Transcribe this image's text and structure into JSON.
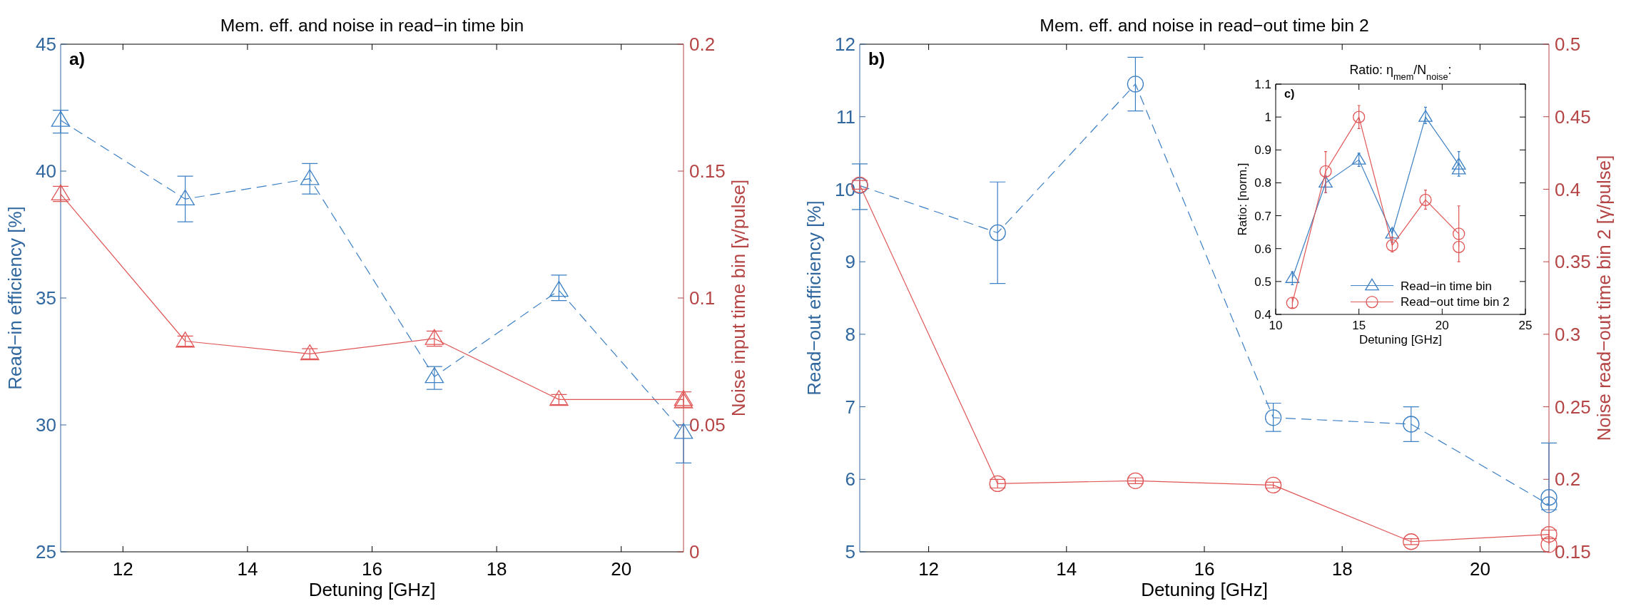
{
  "chart_data": [
    {
      "type": "line",
      "title": "Mem. eff. and noise in read−in time bin",
      "xlabel": "Detuning [GHz]",
      "ylabel": "Read−in efficiency [%]",
      "y2label": "Noise input time bin [γ/pulse]",
      "annotations": [
        "a)"
      ],
      "xlim": [
        11,
        21
      ],
      "xticks": [
        12,
        14,
        16,
        18,
        20
      ],
      "ylim": [
        25,
        45
      ],
      "yticks": [
        25,
        30,
        35,
        40,
        45
      ],
      "y2lim": [
        0,
        0.2
      ],
      "y2ticks": [
        0,
        0.05,
        0.1,
        0.15,
        0.2
      ],
      "grid": false,
      "legend": false,
      "marker": "triangle",
      "series": [
        {
          "color": "#3b7fc4",
          "line_style": "dashed",
          "x": [
            11,
            13,
            15,
            17,
            19,
            21
          ],
          "values": [
            42.0,
            38.9,
            39.7,
            31.9,
            35.3,
            29.7
          ],
          "errors": [
            [
              41.5,
              42.4
            ],
            [
              38.0,
              39.8
            ],
            [
              39.1,
              40.3
            ],
            [
              31.4,
              32.3
            ],
            [
              34.9,
              35.9
            ],
            [
              28.5,
              30.0
            ]
          ]
        },
        {
          "color": "#e05555",
          "line_style": "solid",
          "axis": "y2",
          "x": [
            11,
            13,
            15,
            17,
            19,
            21,
            21
          ],
          "values": [
            0.141,
            0.083,
            0.078,
            0.084,
            0.06,
            0.06,
            0.059
          ],
          "errors": [
            0.003,
            0.002,
            0.002,
            0.003,
            0.002,
            0.003,
            null
          ]
        }
      ]
    },
    {
      "type": "line",
      "title": "Mem. eff. and noise in read−out time bin 2",
      "xlabel": "Detuning [GHz]",
      "ylabel": "Read−out efficiency [%]",
      "y2label": "Noise read−out time bin 2 [γ/pulse]",
      "annotations": [
        "b)"
      ],
      "xlim": [
        11,
        21
      ],
      "xticks": [
        12,
        14,
        16,
        18,
        20
      ],
      "ylim": [
        5,
        12
      ],
      "yticks": [
        5,
        6,
        7,
        8,
        9,
        10,
        11,
        12
      ],
      "y2lim": [
        0.15,
        0.5
      ],
      "y2ticks": [
        0.15,
        0.2,
        0.25,
        0.3,
        0.35,
        0.4,
        0.45,
        0.5
      ],
      "grid": false,
      "legend": false,
      "marker": "circle",
      "series": [
        {
          "color": "#3b7fc4",
          "line_style": "dashed",
          "x": [
            11,
            13,
            15,
            17,
            19,
            21,
            21
          ],
          "values": [
            10.05,
            9.4,
            11.45,
            6.85,
            6.76,
            5.65,
            5.75
          ],
          "errors": [
            [
              9.72,
              10.35
            ],
            [
              8.7,
              10.1
            ],
            [
              11.08,
              11.82
            ],
            [
              6.66,
              7.05
            ],
            [
              6.52,
              7.0
            ],
            [
              5.58,
              6.5
            ],
            null
          ]
        },
        {
          "color": "#e05555",
          "line_style": "solid",
          "axis": "y2",
          "x": [
            11,
            13,
            15,
            17,
            19,
            21,
            21
          ],
          "values": [
            0.403,
            0.197,
            0.199,
            0.196,
            0.157,
            0.162,
            0.155
          ],
          "errors": [
            0.003,
            0.003,
            0.002,
            0.002,
            0.002,
            0.003,
            null
          ]
        }
      ]
    },
    {
      "type": "line",
      "title": "Ratio: η$_{mem}$/N$_{noise}$:",
      "xlabel": "Detuning [GHz]",
      "ylabel": "Ratio: [norm.]",
      "annotations": [
        "c)"
      ],
      "xlim": [
        10,
        25
      ],
      "xticks": [
        10,
        15,
        20,
        25
      ],
      "ylim": [
        0.4,
        1.1
      ],
      "yticks": [
        0.4,
        0.5,
        0.6,
        0.7,
        0.8,
        0.9,
        1,
        1.1
      ],
      "grid": false,
      "legend": "bottom right",
      "series": [
        {
          "name": "Read−in time bin",
          "color": "#3b7fc4",
          "marker": "triangle",
          "line_style": "solid",
          "x": [
            11,
            13,
            15,
            17,
            19,
            21,
            21
          ],
          "values": [
            0.51,
            0.8,
            0.87,
            0.645,
            1.0,
            0.855,
            0.84
          ],
          "errors": [
            [
              0.49,
              0.53
            ],
            [
              0.77,
              0.82
            ],
            [
              0.85,
              0.89
            ],
            [
              0.62,
              0.66
            ],
            [
              0.98,
              1.03
            ],
            [
              0.82,
              0.895
            ],
            null
          ]
        },
        {
          "name": "Read−out time bin 2",
          "color": "#e05555",
          "marker": "circle",
          "line_style": "solid",
          "x": [
            11,
            13,
            15,
            17,
            19,
            21,
            21
          ],
          "values": [
            0.435,
            0.835,
            1.0,
            0.61,
            0.748,
            0.645,
            0.605
          ],
          "errors": [
            [
              0.42,
              0.45
            ],
            [
              0.77,
              0.895
            ],
            [
              0.965,
              1.035
            ],
            [
              0.59,
              0.635
            ],
            [
              0.72,
              0.778
            ],
            [
              0.56,
              0.73
            ],
            null
          ]
        }
      ]
    }
  ]
}
